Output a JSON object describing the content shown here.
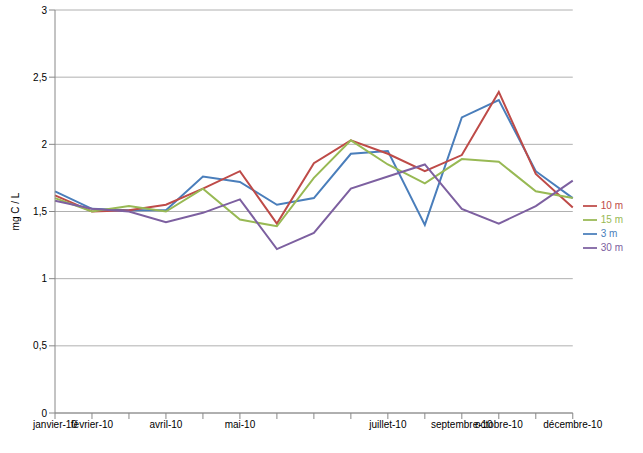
{
  "chart_data": {
    "type": "line",
    "y_label": "mg C / L",
    "categories": [
      "janvier-10",
      "février-10",
      null,
      "avril-10",
      null,
      "mai-10",
      null,
      null,
      null,
      "juillet-10",
      null,
      "septembre-10",
      "octobre-10",
      null,
      "décembre-10"
    ],
    "ylim": [
      0,
      3
    ],
    "yticks": [
      0,
      {
        "value": 0.5,
        "label": "0,5"
      },
      1,
      {
        "value": 1.5,
        "label": "1,5"
      },
      2,
      {
        "value": 2.5,
        "label": "2,5"
      },
      3
    ],
    "grid": true,
    "legend": "right",
    "marker": "none",
    "line_style": "solid",
    "series": [
      {
        "name": "3 m",
        "color": "#4a7ebb",
        "values": [
          1.65,
          1.52,
          1.51,
          1.51,
          1.76,
          1.72,
          1.55,
          1.6,
          1.93,
          1.95,
          1.4,
          2.2,
          2.33,
          1.8,
          1.6
        ]
      },
      {
        "name": "10 m",
        "color": "#be4b48",
        "values": [
          1.62,
          1.5,
          1.51,
          1.55,
          1.67,
          1.8,
          1.41,
          1.86,
          2.03,
          1.93,
          1.8,
          1.92,
          2.39,
          1.78,
          1.53
        ]
      },
      {
        "name": "15 m",
        "color": "#98b954",
        "values": [
          1.6,
          1.5,
          1.54,
          1.5,
          1.67,
          1.44,
          1.39,
          1.75,
          2.03,
          1.85,
          1.71,
          1.89,
          1.87,
          1.65,
          1.6
        ]
      },
      {
        "name": "30 m",
        "color": "#7d60a0",
        "values": [
          1.58,
          1.52,
          1.5,
          1.42,
          1.49,
          1.59,
          1.22,
          1.34,
          1.67,
          1.76,
          1.85,
          1.52,
          1.41,
          1.54,
          1.73
        ]
      }
    ]
  }
}
